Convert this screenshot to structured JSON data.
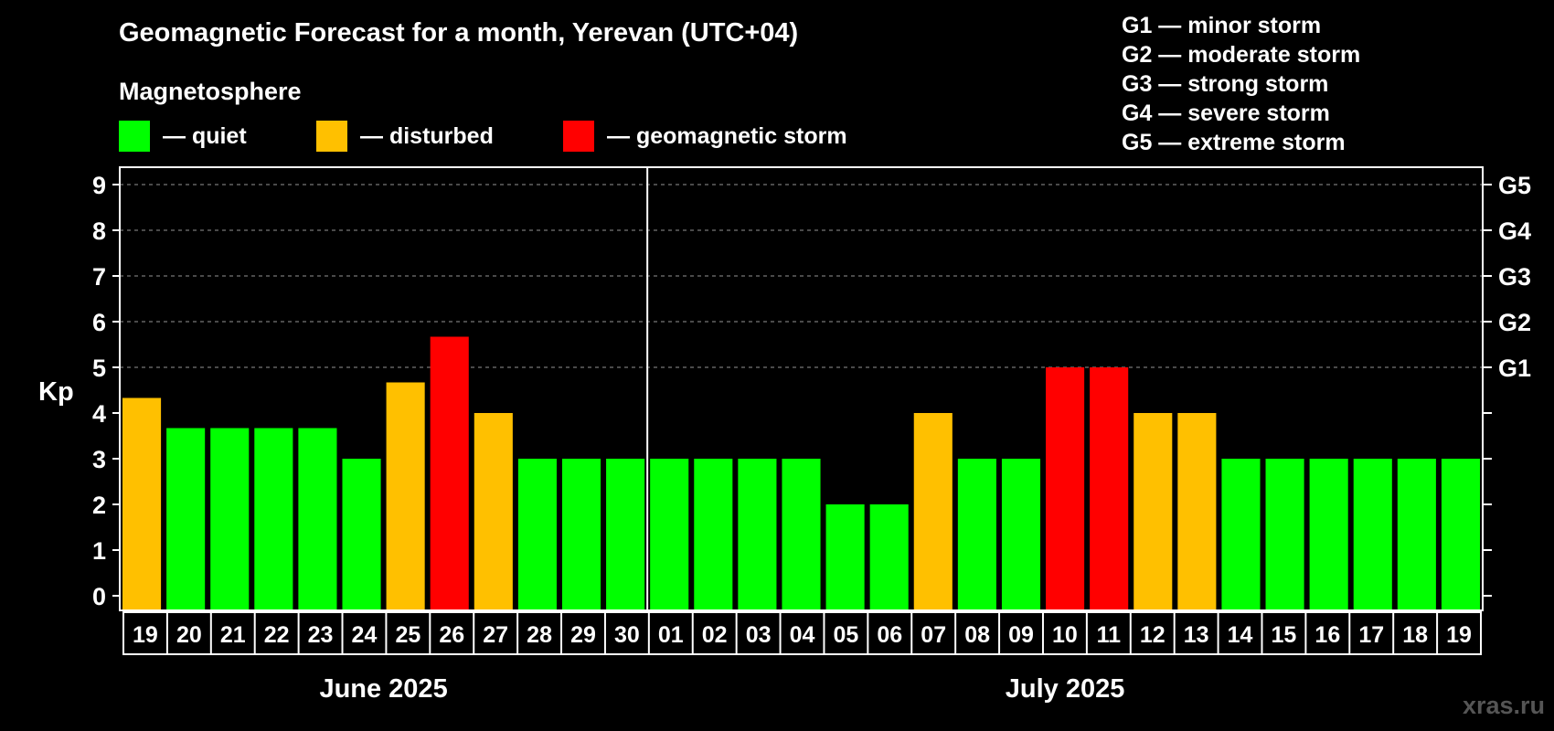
{
  "title": "Geomagnetic Forecast for a month, Yerevan (UTC+04)",
  "subtitle": "Magnetosphere",
  "legend": [
    {
      "label": "— quiet",
      "color": "#00ff00"
    },
    {
      "label": "— disturbed",
      "color": "#ffc000"
    },
    {
      "label": "— geomagnetic storm",
      "color": "#ff0000"
    }
  ],
  "storm_scale": [
    "G1 — minor storm",
    "G2 — moderate storm",
    "G3 — strong storm",
    "G4 — severe storm",
    "G5 — extreme storm"
  ],
  "watermark": "xras.ru",
  "colors": {
    "quiet": "#00ff00",
    "disturbed": "#ffc000",
    "storm": "#ff0000"
  },
  "chart_data": {
    "type": "bar",
    "ylabel": "Kp",
    "ylim": [
      0,
      9
    ],
    "yticks": [
      "0",
      "1",
      "2",
      "3",
      "4",
      "5",
      "6",
      "7",
      "8",
      "9"
    ],
    "right_labels": [
      {
        "kp": 5,
        "label": "G1"
      },
      {
        "kp": 6,
        "label": "G2"
      },
      {
        "kp": 7,
        "label": "G3"
      },
      {
        "kp": 8,
        "label": "G4"
      },
      {
        "kp": 9,
        "label": "G5"
      }
    ],
    "categories": [
      "19",
      "20",
      "21",
      "22",
      "23",
      "24",
      "25",
      "26",
      "27",
      "28",
      "29",
      "30",
      "01",
      "02",
      "03",
      "04",
      "05",
      "06",
      "07",
      "08",
      "09",
      "10",
      "11",
      "12",
      "13",
      "14",
      "15",
      "16",
      "17",
      "18",
      "19"
    ],
    "values": [
      4.33,
      3.67,
      3.67,
      3.67,
      3.67,
      3,
      4.67,
      5.67,
      4,
      3,
      3,
      3,
      3,
      3,
      3,
      3,
      2,
      2,
      4,
      3,
      3,
      5,
      5,
      4,
      4,
      3,
      3,
      3,
      3,
      3,
      3
    ],
    "levels": [
      "disturbed",
      "quiet",
      "quiet",
      "quiet",
      "quiet",
      "quiet",
      "disturbed",
      "storm",
      "disturbed",
      "quiet",
      "quiet",
      "quiet",
      "quiet",
      "quiet",
      "quiet",
      "quiet",
      "quiet",
      "quiet",
      "disturbed",
      "quiet",
      "quiet",
      "storm",
      "storm",
      "disturbed",
      "disturbed",
      "quiet",
      "quiet",
      "quiet",
      "quiet",
      "quiet",
      "quiet"
    ],
    "months": [
      {
        "label": "June 2025",
        "count": 12
      },
      {
        "label": "July 2025",
        "count": 19
      }
    ],
    "grid": true
  }
}
